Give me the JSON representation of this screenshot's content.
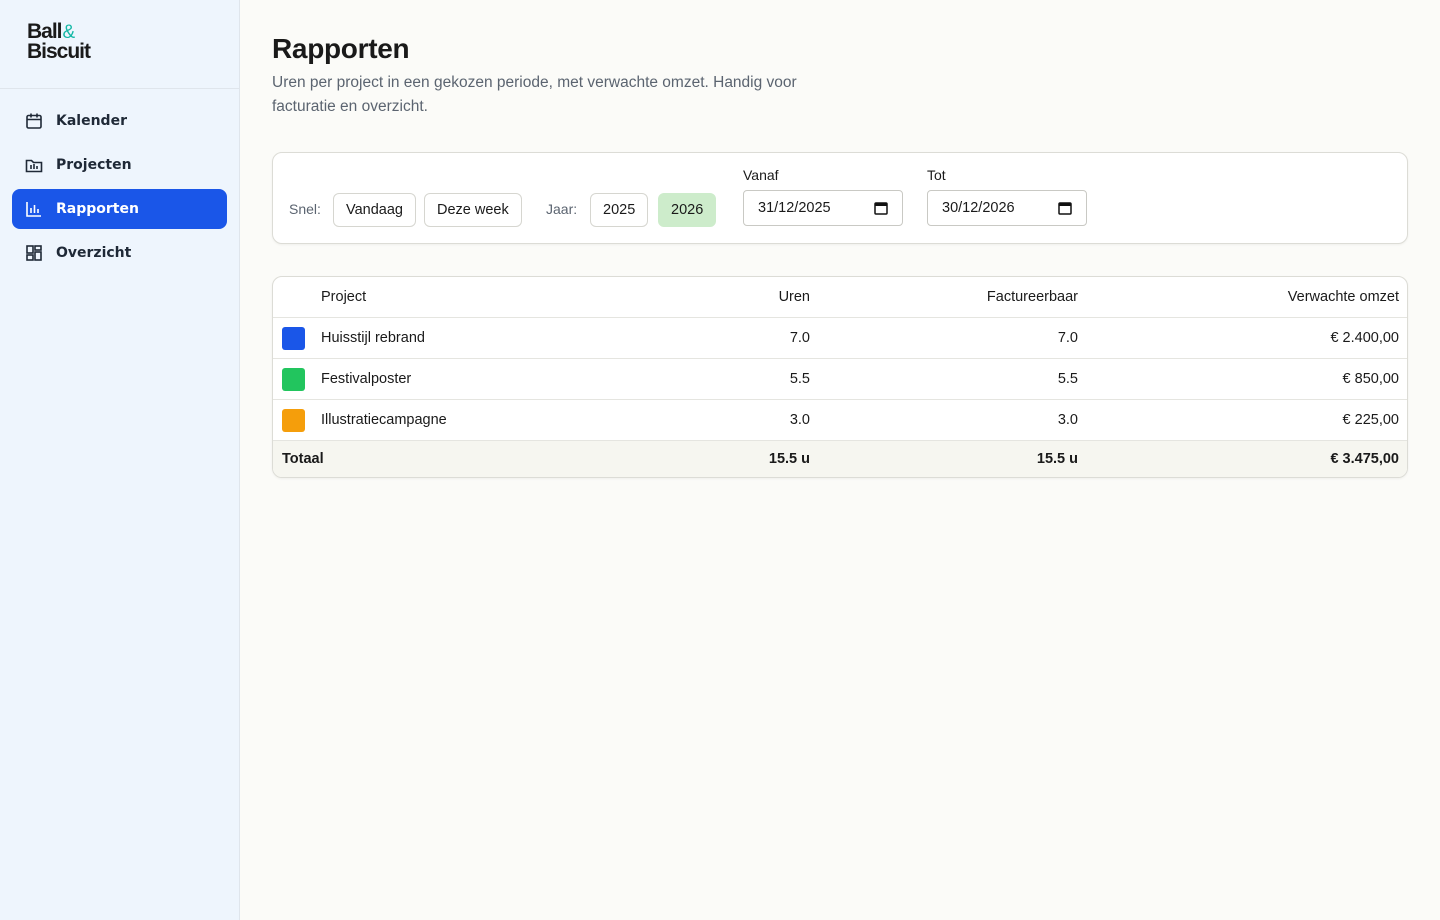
{
  "logo": {
    "line1": "Ball",
    "amp": "&",
    "line2": "Biscuit"
  },
  "nav": [
    {
      "label": "Kalender",
      "icon": "calendar",
      "active": false
    },
    {
      "label": "Projecten",
      "icon": "folder",
      "active": false
    },
    {
      "label": "Rapporten",
      "icon": "chart",
      "active": true
    },
    {
      "label": "Overzicht",
      "icon": "grid",
      "active": false
    }
  ],
  "header": {
    "title": "Rapporten",
    "subtitle": "Uren per project in een gekozen periode, met verwachte omzet. Handig voor facturatie en overzicht."
  },
  "filters": {
    "quick_label": "Snel:",
    "quick": [
      "Vandaag",
      "Deze week"
    ],
    "year_label": "Jaar:",
    "years": [
      {
        "label": "2025",
        "selected": false
      },
      {
        "label": "2026",
        "selected": true
      }
    ],
    "from": {
      "label": "Vanaf",
      "value": "31/12/2025"
    },
    "to": {
      "label": "Tot",
      "value": "30/12/2026"
    }
  },
  "table": {
    "columns": [
      "Project",
      "Uren",
      "Factureerbaar",
      "Verwachte omzet"
    ],
    "rows": [
      {
        "color": "#1a56e8",
        "project": "Huisstijl rebrand",
        "hours": "7.0",
        "billable": "7.0",
        "revenue": "€ 2.400,00"
      },
      {
        "color": "#22c55e",
        "project": "Festivalposter",
        "hours": "5.5",
        "billable": "5.5",
        "revenue": "€ 850,00"
      },
      {
        "color": "#f59e0b",
        "project": "Illustratiecampagne",
        "hours": "3.0",
        "billable": "3.0",
        "revenue": "€ 225,00"
      }
    ],
    "total": {
      "label": "Totaal",
      "hours": "15.5 u",
      "billable": "15.5 u",
      "revenue": "€ 3.475,00"
    }
  }
}
